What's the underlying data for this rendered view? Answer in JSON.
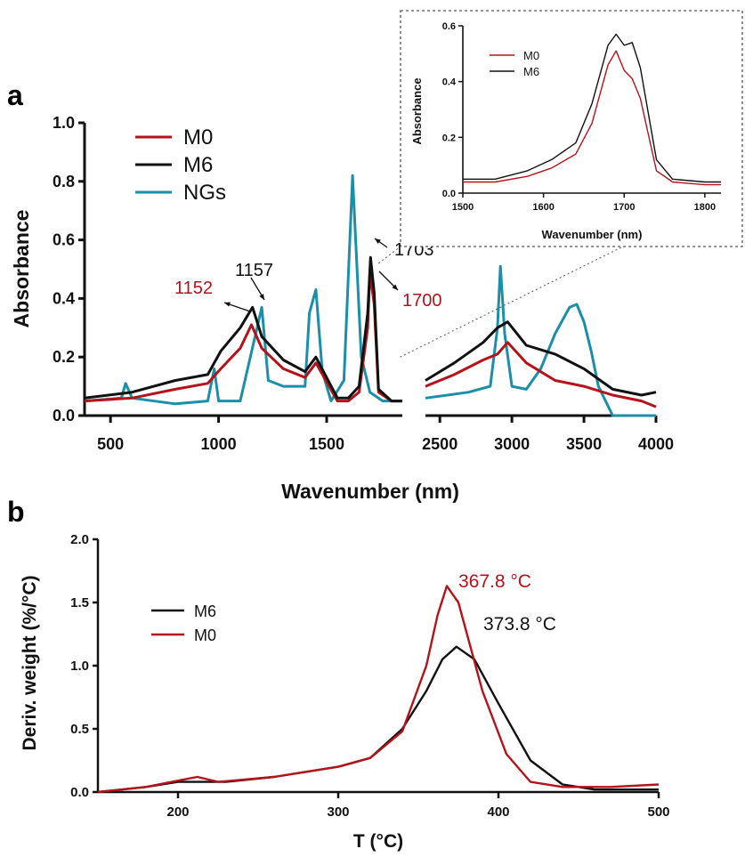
{
  "panel_labels": {
    "a": "a",
    "b": "b"
  },
  "colors": {
    "M0": "#b5121b",
    "M6": "#111111",
    "NGs": "#1b8fa8"
  },
  "chart_data": [
    {
      "id": "ftir",
      "type": "line",
      "xlabel": "Wavenumber (nm)",
      "ylabel": "Absorbance",
      "ylim": [
        0,
        1.0
      ],
      "yticks": [
        "0.0",
        "0.2",
        "0.4",
        "0.6",
        "0.8",
        "1.0"
      ],
      "x_segments": [
        {
          "xlim": [
            380,
            1850
          ],
          "xticks": [
            "500",
            "1000",
            "1500"
          ]
        },
        {
          "xlim": [
            2400,
            4000
          ],
          "xticks": [
            "2500",
            "3000",
            "3500",
            "4000"
          ]
        }
      ],
      "legend": [
        "M0",
        "M6",
        "NGs"
      ],
      "legend_position": "top-left",
      "annotations": [
        {
          "text": "1152",
          "series": "M0"
        },
        {
          "text": "1157",
          "series": "M6"
        },
        {
          "text": "1703",
          "series": "M6"
        },
        {
          "text": "1700",
          "series": "M0"
        }
      ],
      "series": [
        {
          "name": "M0",
          "x": [
            380,
            600,
            800,
            950,
            1010,
            1100,
            1152,
            1200,
            1300,
            1400,
            1450,
            1550,
            1600,
            1650,
            1690,
            1700,
            1720,
            1740,
            1800,
            1850,
            2400,
            2600,
            2800,
            2900,
            2970,
            3100,
            3300,
            3500,
            3700,
            3900,
            4000
          ],
          "y": [
            0.05,
            0.06,
            0.09,
            0.11,
            0.16,
            0.23,
            0.31,
            0.23,
            0.16,
            0.13,
            0.18,
            0.05,
            0.05,
            0.08,
            0.3,
            0.49,
            0.38,
            0.08,
            0.05,
            0.05,
            0.1,
            0.14,
            0.19,
            0.21,
            0.25,
            0.18,
            0.12,
            0.1,
            0.07,
            0.05,
            0.03
          ]
        },
        {
          "name": "M6",
          "x": [
            380,
            600,
            800,
            950,
            1010,
            1100,
            1157,
            1200,
            1300,
            1400,
            1450,
            1550,
            1600,
            1650,
            1690,
            1703,
            1720,
            1740,
            1800,
            1850,
            2400,
            2600,
            2800,
            2900,
            2970,
            3100,
            3300,
            3500,
            3700,
            3900,
            4000
          ],
          "y": [
            0.06,
            0.08,
            0.12,
            0.14,
            0.22,
            0.3,
            0.37,
            0.27,
            0.19,
            0.15,
            0.2,
            0.06,
            0.06,
            0.1,
            0.35,
            0.54,
            0.42,
            0.09,
            0.05,
            0.05,
            0.12,
            0.18,
            0.25,
            0.3,
            0.32,
            0.24,
            0.21,
            0.16,
            0.09,
            0.07,
            0.08
          ]
        },
        {
          "name": "NGs",
          "x": [
            380,
            550,
            570,
            600,
            800,
            950,
            980,
            1000,
            1100,
            1200,
            1230,
            1300,
            1400,
            1420,
            1450,
            1480,
            1520,
            1580,
            1620,
            1660,
            1700,
            1760,
            1800,
            1850,
            2400,
            2700,
            2850,
            2900,
            2920,
            2950,
            3000,
            3100,
            3200,
            3300,
            3400,
            3450,
            3500,
            3550,
            3600,
            3700,
            4000
          ],
          "y": [
            0.05,
            0.06,
            0.11,
            0.06,
            0.04,
            0.05,
            0.16,
            0.05,
            0.05,
            0.37,
            0.12,
            0.1,
            0.1,
            0.35,
            0.43,
            0.15,
            0.05,
            0.12,
            0.82,
            0.2,
            0.08,
            0.05,
            0.05,
            0.05,
            0.06,
            0.08,
            0.1,
            0.3,
            0.51,
            0.28,
            0.1,
            0.09,
            0.16,
            0.28,
            0.37,
            0.38,
            0.32,
            0.22,
            0.1,
            0.0,
            0.0
          ]
        }
      ]
    },
    {
      "id": "ftir-inset",
      "type": "line",
      "xlabel": "Wavenumber (nm)",
      "ylabel": "Absorbance",
      "xlim": [
        1500,
        1820
      ],
      "ylim": [
        0,
        0.6
      ],
      "xticks": [
        "1500",
        "1600",
        "1700",
        "1800"
      ],
      "yticks": [
        "0.0",
        "0.2",
        "0.4",
        "0.6"
      ],
      "legend": [
        "M0",
        "M6"
      ],
      "legend_position": "top-left",
      "series": [
        {
          "name": "M0",
          "x": [
            1500,
            1540,
            1580,
            1610,
            1640,
            1660,
            1680,
            1690,
            1700,
            1710,
            1720,
            1740,
            1760,
            1800,
            1820
          ],
          "y": [
            0.04,
            0.04,
            0.06,
            0.09,
            0.14,
            0.25,
            0.46,
            0.51,
            0.44,
            0.41,
            0.34,
            0.08,
            0.04,
            0.03,
            0.03
          ]
        },
        {
          "name": "M6",
          "x": [
            1500,
            1540,
            1580,
            1610,
            1640,
            1660,
            1680,
            1690,
            1700,
            1710,
            1720,
            1740,
            1760,
            1800,
            1820
          ],
          "y": [
            0.05,
            0.05,
            0.08,
            0.12,
            0.18,
            0.32,
            0.53,
            0.57,
            0.53,
            0.54,
            0.45,
            0.12,
            0.05,
            0.04,
            0.04
          ]
        }
      ]
    },
    {
      "id": "dtg",
      "type": "line",
      "xlabel": "T (°C)",
      "ylabel": "Deriv. weight (%/°C)",
      "xlim": [
        150,
        500
      ],
      "ylim": [
        0,
        2.0
      ],
      "xticks": [
        "200",
        "300",
        "400",
        "500"
      ],
      "yticks": [
        "0.0",
        "0.5",
        "1.0",
        "1.5",
        "2.0"
      ],
      "legend": [
        "M6",
        "M0"
      ],
      "legend_position": "center-left",
      "annotations": [
        {
          "text": "367.8 °C",
          "series": "M0"
        },
        {
          "text": "373.8 °C",
          "series": "M6"
        }
      ],
      "series": [
        {
          "name": "M6",
          "x": [
            150,
            180,
            200,
            230,
            260,
            300,
            320,
            340,
            355,
            365,
            373.8,
            385,
            400,
            420,
            440,
            460,
            500
          ],
          "y": [
            0.0,
            0.04,
            0.08,
            0.08,
            0.12,
            0.2,
            0.27,
            0.5,
            0.8,
            1.05,
            1.15,
            1.05,
            0.7,
            0.25,
            0.06,
            0.02,
            0.02
          ]
        },
        {
          "name": "M0",
          "x": [
            150,
            180,
            200,
            212,
            225,
            260,
            300,
            320,
            340,
            355,
            362,
            367.8,
            375,
            390,
            405,
            420,
            440,
            470,
            500
          ],
          "y": [
            0.0,
            0.04,
            0.09,
            0.12,
            0.08,
            0.12,
            0.2,
            0.27,
            0.48,
            1.0,
            1.4,
            1.63,
            1.5,
            0.8,
            0.3,
            0.08,
            0.04,
            0.04,
            0.06
          ]
        }
      ]
    }
  ]
}
